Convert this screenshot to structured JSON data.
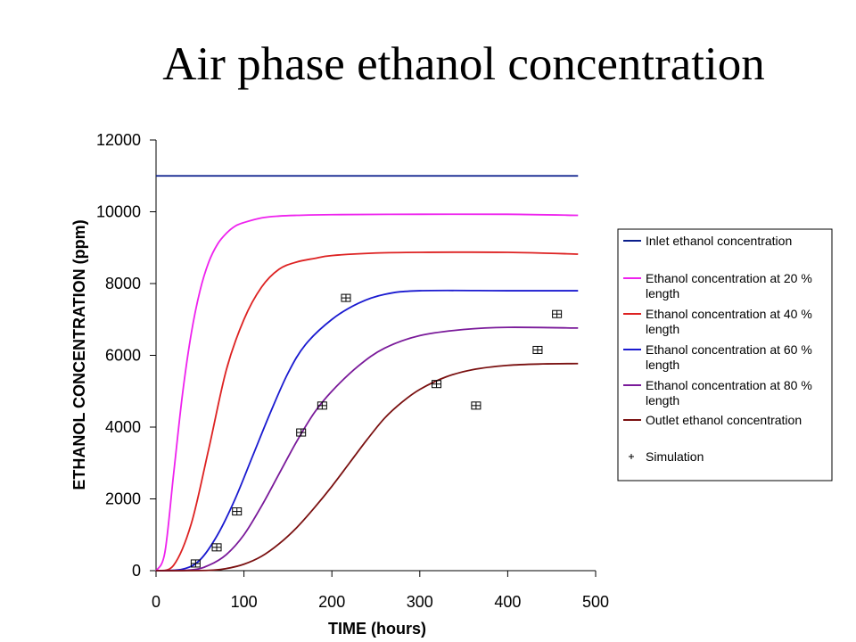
{
  "slide": {
    "title": "Air phase ethanol concentration"
  },
  "chart_data": {
    "type": "line",
    "title": "Air phase ethanol concentration",
    "xlabel": "TIME (hours)",
    "ylabel": "ETHANOL CONCENTRATION (ppm)",
    "xlim": [
      0,
      500
    ],
    "ylim": [
      0,
      12000
    ],
    "x_ticks": [
      "0",
      "100",
      "200",
      "300",
      "400",
      "500"
    ],
    "y_ticks": [
      "0",
      "2000",
      "4000",
      "6000",
      "8000",
      "10000",
      "12000"
    ],
    "grid": false,
    "legend_position": "right",
    "series": [
      {
        "name": "Inlet ethanol concentration",
        "color": "#0a1e8c",
        "x": [
          0,
          480
        ],
        "y": [
          11000,
          11000
        ]
      },
      {
        "name": "Ethanol concentration at 20 % length",
        "color": "#ee22ee",
        "x": [
          0,
          10,
          20,
          30,
          40,
          50,
          60,
          70,
          80,
          90,
          100,
          120,
          140,
          160,
          200,
          300,
          400,
          480
        ],
        "y": [
          0,
          500,
          2700,
          4900,
          6600,
          7800,
          8600,
          9100,
          9400,
          9600,
          9700,
          9830,
          9880,
          9900,
          9920,
          9930,
          9930,
          9900
        ]
      },
      {
        "name": "Ethanol concentration at 40 % length",
        "color": "#dd2222",
        "x": [
          0,
          20,
          40,
          60,
          80,
          100,
          120,
          140,
          160,
          180,
          200,
          250,
          300,
          400,
          480
        ],
        "y": [
          0,
          150,
          1300,
          3400,
          5600,
          7000,
          7900,
          8400,
          8600,
          8700,
          8780,
          8850,
          8870,
          8870,
          8820
        ]
      },
      {
        "name": "Ethanol concentration at 60 % length",
        "color": "#1a1ad0",
        "x": [
          0,
          30,
          50,
          70,
          90,
          110,
          130,
          150,
          170,
          200,
          230,
          260,
          300,
          400,
          480
        ],
        "y": [
          0,
          40,
          300,
          1000,
          2000,
          3200,
          4400,
          5500,
          6300,
          7000,
          7450,
          7700,
          7800,
          7800,
          7800
        ]
      },
      {
        "name": "Ethanol concentration at 80 % length",
        "color": "#7a1a9a",
        "x": [
          0,
          40,
          60,
          80,
          100,
          120,
          140,
          160,
          180,
          200,
          230,
          260,
          300,
          350,
          400,
          480
        ],
        "y": [
          0,
          20,
          150,
          450,
          1000,
          1800,
          2700,
          3600,
          4400,
          5000,
          5700,
          6200,
          6550,
          6720,
          6780,
          6760
        ]
      },
      {
        "name": "Outlet ethanol concentration",
        "color": "#7a1010",
        "x": [
          0,
          60,
          80,
          100,
          120,
          140,
          160,
          180,
          200,
          220,
          240,
          260,
          280,
          300,
          330,
          360,
          400,
          440,
          480
        ],
        "y": [
          0,
          10,
          60,
          180,
          400,
          750,
          1200,
          1750,
          2350,
          3000,
          3650,
          4250,
          4700,
          5050,
          5400,
          5600,
          5720,
          5760,
          5770
        ]
      },
      {
        "name": "Simulation",
        "color": "#000000",
        "marker": "plus",
        "x": [
          45,
          69,
          92,
          165,
          189,
          216,
          319,
          364,
          434,
          456
        ],
        "y": [
          200,
          650,
          1650,
          3850,
          4600,
          7600,
          5200,
          4600,
          6150,
          7150
        ]
      }
    ],
    "legend_entries": [
      [
        "Inlet ethanol concentration"
      ],
      [
        "Ethanol concentration at 20 %",
        "length"
      ],
      [
        "Ethanol concentration at 40 %",
        "length"
      ],
      [
        "Ethanol concentration at 60 %",
        "length"
      ],
      [
        "Ethanol concentration at 80 %",
        "length"
      ],
      [
        "Outlet ethanol concentration"
      ],
      [
        "Simulation"
      ]
    ]
  }
}
